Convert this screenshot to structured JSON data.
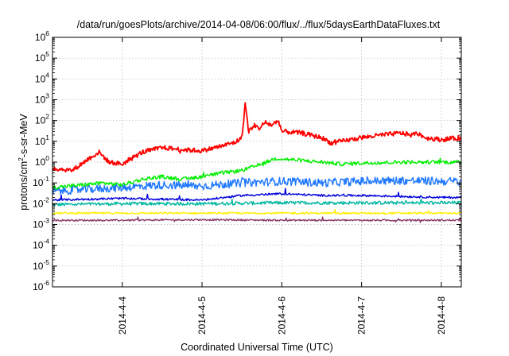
{
  "chart_data": {
    "type": "line",
    "title": "/data/run/goesPlots/archive/2014-04-08/06:00/flux/../flux/5daysEarthDataFluxes.txt",
    "xlabel": "Coordinated Universal Time (UTC)",
    "ylabel": {
      "prefix": "protons/cm",
      "sup": "2",
      "suffix": "-s-sr-MeV"
    },
    "y_scale": "log",
    "ylim": [
      1e-06,
      1000000.0
    ],
    "y_ticks": [
      {
        "base": "10",
        "exp": "-6"
      },
      {
        "base": "10",
        "exp": "-5"
      },
      {
        "base": "10",
        "exp": "-4"
      },
      {
        "base": "10",
        "exp": "-3"
      },
      {
        "base": "10",
        "exp": "-2"
      },
      {
        "base": "10",
        "exp": "-1"
      },
      {
        "base": "10",
        "exp": "0"
      },
      {
        "base": "10",
        "exp": "1"
      },
      {
        "base": "10",
        "exp": "2"
      },
      {
        "base": "10",
        "exp": "3"
      },
      {
        "base": "10",
        "exp": "4"
      },
      {
        "base": "10",
        "exp": "5"
      },
      {
        "base": "10",
        "exp": "6"
      }
    ],
    "xlim": [
      "2014-04-03 03:00",
      "2014-04-08 06:00"
    ],
    "x_ticks": [
      "2014-4-4",
      "2014-4-5",
      "2014-4-6",
      "2014-4-7",
      "2014-4-8"
    ],
    "grid": true,
    "series": [
      {
        "color": "#ff0000",
        "x": [
          "2014-04-03 03:00",
          "2014-04-03 09:00",
          "2014-04-03 14:00",
          "2014-04-03 17:00",
          "2014-04-03 20:00",
          "2014-04-04 00:00",
          "2014-04-04 06:00",
          "2014-04-04 12:00",
          "2014-04-04 18:00",
          "2014-04-05 00:00",
          "2014-04-05 06:00",
          "2014-04-05 10:00",
          "2014-04-05 12:00",
          "2014-04-05 13:00",
          "2014-04-05 14:00",
          "2014-04-05 16:00",
          "2014-04-05 17:00",
          "2014-04-05 19:00",
          "2014-04-05 21:00",
          "2014-04-05 23:00",
          "2014-04-06 00:00",
          "2014-04-06 06:00",
          "2014-04-06 12:00",
          "2014-04-06 15:00",
          "2014-04-06 18:00",
          "2014-04-07 00:00",
          "2014-04-07 06:00",
          "2014-04-07 12:00",
          "2014-04-07 15:00",
          "2014-04-07 17:00",
          "2014-04-07 19:00",
          "2014-04-08 00:00",
          "2014-04-08 06:00"
        ],
        "y": [
          0.5,
          0.4,
          1.5,
          3,
          1,
          0.8,
          3,
          5,
          4,
          3.5,
          6,
          9,
          15,
          700,
          30,
          60,
          40,
          80,
          60,
          100,
          30,
          25,
          15,
          8,
          10,
          15,
          20,
          25,
          20,
          25,
          15,
          12,
          15
        ]
      },
      {
        "color": "#00ee00",
        "x": [
          "2014-04-03 03:00",
          "2014-04-03 12:00",
          "2014-04-03 18:00",
          "2014-04-04 00:00",
          "2014-04-04 06:00",
          "2014-04-04 12:00",
          "2014-04-04 18:00",
          "2014-04-05 00:00",
          "2014-04-05 06:00",
          "2014-04-05 12:00",
          "2014-04-05 18:00",
          "2014-04-05 22:00",
          "2014-04-06 06:00",
          "2014-04-06 12:00",
          "2014-04-06 18:00",
          "2014-04-07 00:00",
          "2014-04-07 12:00",
          "2014-04-08 00:00",
          "2014-04-08 06:00"
        ],
        "y": [
          0.06,
          0.08,
          0.1,
          0.08,
          0.15,
          0.2,
          0.15,
          0.2,
          0.3,
          0.4,
          0.8,
          1.5,
          1.2,
          1,
          0.8,
          0.9,
          1,
          1,
          1
        ]
      },
      {
        "color": "#1e78ff",
        "x": [
          "2014-04-03 03:00",
          "2014-04-04 00:00",
          "2014-04-04 12:00",
          "2014-04-05 00:00",
          "2014-04-05 12:00",
          "2014-04-06 00:00",
          "2014-04-06 12:00",
          "2014-04-07 00:00",
          "2014-04-07 12:00",
          "2014-04-08 00:00",
          "2014-04-08 06:00"
        ],
        "y": [
          0.04,
          0.06,
          0.08,
          0.07,
          0.1,
          0.12,
          0.1,
          0.12,
          0.13,
          0.12,
          0.12
        ]
      },
      {
        "color": "#0000dd",
        "x": [
          "2014-04-03 03:00",
          "2014-04-04 00:00",
          "2014-04-05 00:00",
          "2014-04-05 12:00",
          "2014-04-06 00:00",
          "2014-04-06 12:00",
          "2014-04-07 00:00",
          "2014-04-08 00:00",
          "2014-04-08 06:00"
        ],
        "y": [
          0.015,
          0.018,
          0.015,
          0.025,
          0.03,
          0.025,
          0.025,
          0.02,
          0.02
        ]
      },
      {
        "color": "#00b8a0",
        "x": [
          "2014-04-03 03:00",
          "2014-04-04 00:00",
          "2014-04-05 00:00",
          "2014-04-06 00:00",
          "2014-04-07 00:00",
          "2014-04-08 06:00"
        ],
        "y": [
          0.009,
          0.01,
          0.01,
          0.011,
          0.011,
          0.011
        ]
      },
      {
        "color": "#ffee00",
        "x": [
          "2014-04-03 03:00",
          "2014-04-04 00:00",
          "2014-04-05 00:00",
          "2014-04-06 00:00",
          "2014-04-07 00:00",
          "2014-04-08 06:00"
        ],
        "y": [
          0.0035,
          0.0035,
          0.0035,
          0.0035,
          0.0035,
          0.0035
        ]
      },
      {
        "color": "#8a3a6a",
        "x": [
          "2014-04-03 03:00",
          "2014-04-04 00:00",
          "2014-04-05 00:00",
          "2014-04-06 00:00",
          "2014-04-07 00:00",
          "2014-04-08 06:00"
        ],
        "y": [
          0.0016,
          0.0016,
          0.0017,
          0.0016,
          0.0016,
          0.0016
        ]
      }
    ]
  }
}
